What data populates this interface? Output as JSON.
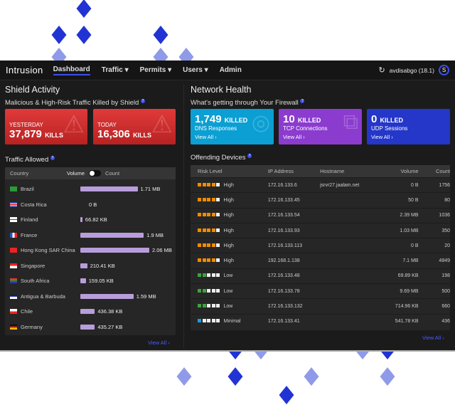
{
  "nav": {
    "logo": "Intrusion",
    "items": [
      "Dashboard",
      "Traffic ▾",
      "Permits ▾",
      "Users ▾",
      "Admin"
    ],
    "user": "avdisabgo (18.1)",
    "avatar": "S",
    "refresh_icon": "↻"
  },
  "shield": {
    "title": "Shield Activity",
    "subtitle": "Malicious & High-Risk Traffic Killed by Shield",
    "help": "?",
    "cards": [
      {
        "label": "YESTERDAY",
        "value": "37,879",
        "unit": "KILLS"
      },
      {
        "label": "TODAY",
        "value": "16,306",
        "unit": "KILLS"
      }
    ]
  },
  "traffic": {
    "title": "Traffic Allowed",
    "help": "?",
    "col_country": "Country",
    "toggle_left": "Volume",
    "toggle_right": "Count",
    "view_all": "View All  ›",
    "rows": [
      {
        "country": "Brazil",
        "value": "1.71 MB",
        "pct": 83
      },
      {
        "country": "Costa Rica",
        "value": "0 B",
        "pct": 0
      },
      {
        "country": "Finland",
        "value": "66.82 KB",
        "pct": 3
      },
      {
        "country": "France",
        "value": "1.9 MB",
        "pct": 92
      },
      {
        "country": "Hong Kong SAR China",
        "value": "2.06 MB",
        "pct": 100
      },
      {
        "country": "Singapore",
        "value": "210.41 KB",
        "pct": 10
      },
      {
        "country": "South Africa",
        "value": "159.05 KB",
        "pct": 8
      },
      {
        "country": "Antigua & Barbuda",
        "value": "1.59 MB",
        "pct": 77
      },
      {
        "country": "Chile",
        "value": "436.38 KB",
        "pct": 21
      },
      {
        "country": "Germany",
        "value": "435.27 KB",
        "pct": 21
      }
    ]
  },
  "network": {
    "title": "Network Health",
    "subtitle": "What's getting through Your Firewall",
    "help": "?",
    "cards": [
      {
        "value": "1,749",
        "unit": "KILLED",
        "label": "DNS Responses",
        "link": "View All  ›",
        "color": "#0b9fd3"
      },
      {
        "value": "10",
        "unit": "KILLED",
        "label": "TCP Connections",
        "link": "View All  ›",
        "color": "#8b3ccf"
      },
      {
        "value": "0",
        "unit": "KILLED",
        "label": "UDP Sessions",
        "link": "View All  ›",
        "color": "#2437c8"
      }
    ]
  },
  "devices": {
    "title": "Offending Devices",
    "help": "?",
    "headers": [
      "Risk Level",
      "IP Address",
      "Hostname",
      "Volume",
      "Count"
    ],
    "view_all": "View All  ›",
    "risk_colors": {
      "High": "#f08c00",
      "Low": "#3fa33f",
      "Minimal": "#1e9be0"
    },
    "rows": [
      {
        "risk": "High",
        "level": 4,
        "ip": "172.16.133.6",
        "host": "jsrvr27.jaalam.net",
        "volume": "0 B",
        "count": "1756"
      },
      {
        "risk": "High",
        "level": 4,
        "ip": "172.16.133.45",
        "host": "",
        "volume": "50 B",
        "count": "80"
      },
      {
        "risk": "High",
        "level": 4,
        "ip": "172.16.133.54",
        "host": "",
        "volume": "2.39 MB",
        "count": "1036"
      },
      {
        "risk": "High",
        "level": 4,
        "ip": "172.16.133.93",
        "host": "",
        "volume": "1.03 MB",
        "count": "350"
      },
      {
        "risk": "High",
        "level": 4,
        "ip": "172.16.133.113",
        "host": "",
        "volume": "0 B",
        "count": "20"
      },
      {
        "risk": "High",
        "level": 4,
        "ip": "192.168.1.138",
        "host": "",
        "volume": "7.1 MB",
        "count": "4849"
      },
      {
        "risk": "Low",
        "level": 2,
        "ip": "172.16.133.48",
        "host": "",
        "volume": "69.89 KB",
        "count": "198"
      },
      {
        "risk": "Low",
        "level": 2,
        "ip": "172.16.133.78",
        "host": "",
        "volume": "9.69 MB",
        "count": "500"
      },
      {
        "risk": "Low",
        "level": 2,
        "ip": "172.16.133.132",
        "host": "",
        "volume": "714.96 KB",
        "count": "660"
      },
      {
        "risk": "Minimal",
        "level": 1,
        "ip": "172.16.133.41",
        "host": "",
        "volume": "541.78 KB",
        "count": "436"
      }
    ]
  }
}
